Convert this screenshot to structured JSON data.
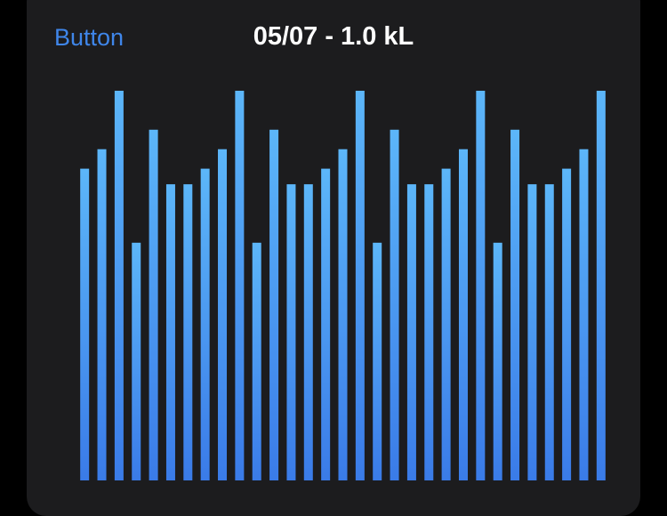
{
  "button": {
    "label": "Button"
  },
  "chart_data": {
    "type": "bar",
    "title": "05/07 - 1.0 kL",
    "values": [
      0.8,
      0.85,
      1.0,
      0.61,
      0.9,
      0.76,
      0.76,
      0.8,
      0.85,
      1.0,
      0.61,
      0.9,
      0.76,
      0.76,
      0.8,
      0.85,
      1.0,
      0.61,
      0.9,
      0.76,
      0.76,
      0.8,
      0.85,
      1.0,
      0.61,
      0.9,
      0.76,
      0.76,
      0.8,
      0.85,
      1.0
    ],
    "gradient": [
      "#5cb6f9",
      "#3a7be8"
    ]
  }
}
